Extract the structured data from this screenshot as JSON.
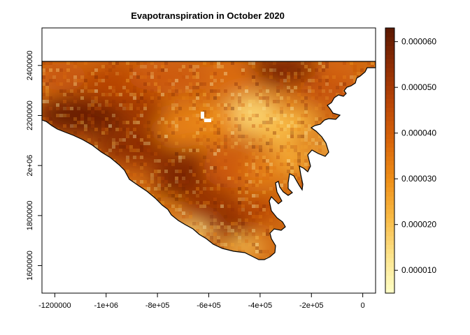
{
  "title": "Evapotranspiration in October 2020",
  "x_axis": {
    "ticks": [
      {
        "value": -1200000,
        "label": "-1200000"
      },
      {
        "value": -1000000,
        "label": "-1e+06"
      },
      {
        "value": -800000,
        "label": "-8e+05"
      },
      {
        "value": -600000,
        "label": "-6e+05"
      },
      {
        "value": -400000,
        "label": "-4e+05"
      },
      {
        "value": -200000,
        "label": "-2e+05"
      },
      {
        "value": 0,
        "label": "0"
      }
    ],
    "range": [
      -1250000,
      50000
    ]
  },
  "y_axis": {
    "ticks": [
      {
        "value": 1600000,
        "label": "1600000"
      },
      {
        "value": 1800000,
        "label": "1800000"
      },
      {
        "value": 2000000,
        "label": "2e+06"
      },
      {
        "value": 2200000,
        "label": "2200000"
      },
      {
        "value": 2400000,
        "label": "2400000"
      }
    ],
    "range": [
      1490000,
      2550000
    ]
  },
  "legend": {
    "ticks": [
      {
        "value": 1e-05,
        "label": "0.000010"
      },
      {
        "value": 2e-05,
        "label": "0.000020"
      },
      {
        "value": 3e-05,
        "label": "0.000030"
      },
      {
        "value": 4e-05,
        "label": "0.000040"
      },
      {
        "value": 5e-05,
        "label": "0.000050"
      },
      {
        "value": 6e-05,
        "label": "0.000060"
      }
    ],
    "range": [
      5e-06,
      6.3e-05
    ],
    "colors": [
      "#FFFFC8",
      "#FCE38B",
      "#F8BA45",
      "#EE8F18",
      "#D8650A",
      "#B94606",
      "#8E2D04",
      "#5A1902"
    ]
  },
  "map": {
    "variable": "evapotranspiration",
    "month": "October 2020",
    "colormap": "YlOrBr",
    "coastline_color": "#000000"
  }
}
